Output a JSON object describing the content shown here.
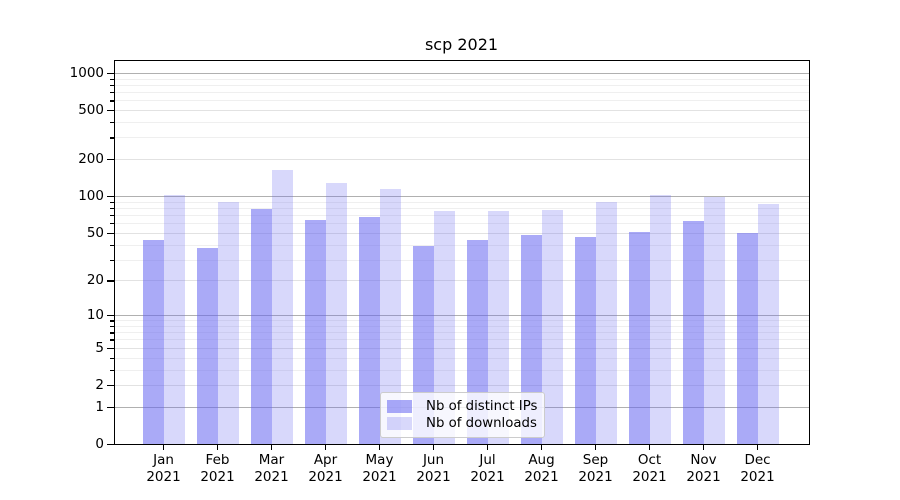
{
  "chart_data": {
    "type": "bar",
    "title": "scp 2021",
    "categories": [
      "Jan 2021",
      "Feb 2021",
      "Mar 2021",
      "Apr 2021",
      "May 2021",
      "Jun 2021",
      "Jul 2021",
      "Aug 2021",
      "Sep 2021",
      "Oct 2021",
      "Nov 2021",
      "Dec 2021"
    ],
    "series": [
      {
        "name": "Nb of distinct IPs",
        "values": [
          44,
          38,
          80,
          64,
          68,
          39,
          44,
          48,
          47,
          51,
          63,
          50
        ],
        "color": "rgba(100,100,240,0.55)"
      },
      {
        "name": "Nb of downloads",
        "values": [
          103,
          90,
          165,
          130,
          115,
          77,
          77,
          78,
          90,
          103,
          99,
          87
        ],
        "color": "rgba(100,100,240,0.25)"
      }
    ],
    "xlabel": "",
    "ylabel": "",
    "yscale": "log1p",
    "ylim": [
      0,
      1285
    ],
    "yticks": [
      0,
      1,
      2,
      5,
      10,
      20,
      50,
      100,
      200,
      500,
      1000
    ],
    "major_grid_values": [
      1,
      10,
      100,
      1000
    ],
    "mid_grid_values": [
      2,
      5,
      20,
      50,
      200,
      500
    ],
    "minor_grid_values": [
      3,
      4,
      6,
      7,
      8,
      9,
      30,
      40,
      60,
      70,
      80,
      90,
      300,
      400,
      600,
      700,
      800,
      900
    ],
    "grid": true,
    "legend_position": "lower center",
    "colors": {
      "major_grid": "#b0b0b0",
      "mid_grid": "#e2e2e2",
      "minor_grid": "#efefef",
      "spine": "#000000",
      "text": "#000000",
      "background": "#ffffff"
    }
  }
}
